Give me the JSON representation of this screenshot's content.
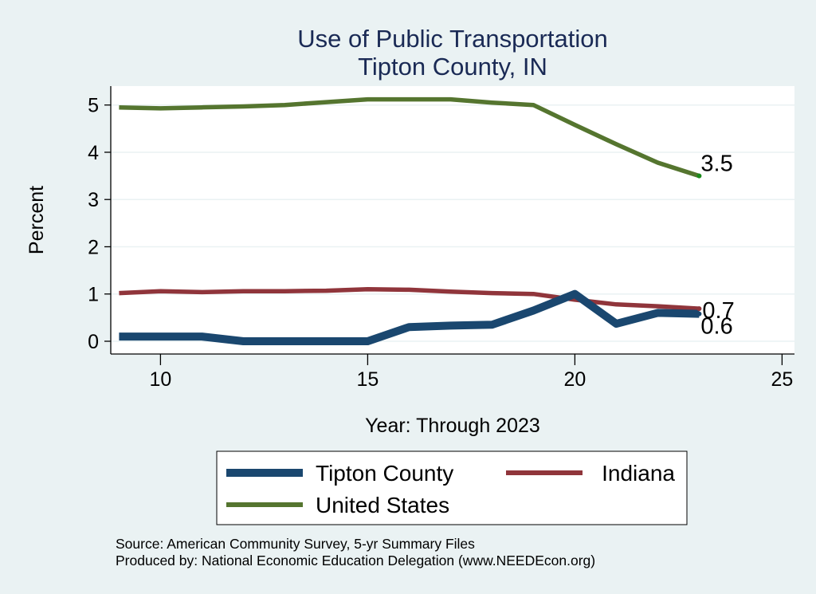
{
  "chart_data": {
    "type": "line",
    "title": "Use of Public Transportation",
    "subtitle": "Tipton County, IN",
    "xlabel": "Year: Through 2023",
    "ylabel": "Percent",
    "xlim": [
      8.8,
      25.3
    ],
    "ylim": [
      -0.27,
      5.4
    ],
    "xticks": [
      10,
      15,
      20,
      25
    ],
    "yticks": [
      0,
      1,
      2,
      3,
      4,
      5
    ],
    "grid": true,
    "x": [
      9,
      10,
      11,
      12,
      13,
      14,
      15,
      16,
      17,
      18,
      19,
      20,
      21,
      22,
      23
    ],
    "series": [
      {
        "name": "Tipton County",
        "color": "#1a476f",
        "values": [
          0.1,
          0.1,
          0.1,
          0.0,
          0.0,
          0.0,
          0.0,
          0.3,
          0.33,
          0.35,
          0.65,
          1.0,
          0.37,
          0.6,
          0.58
        ],
        "end_label": "0.6"
      },
      {
        "name": "Indiana",
        "color": "#90353b",
        "values": [
          1.02,
          1.06,
          1.04,
          1.06,
          1.06,
          1.07,
          1.1,
          1.09,
          1.05,
          1.02,
          1.0,
          0.88,
          0.78,
          0.74,
          0.69
        ],
        "end_label": "0.7"
      },
      {
        "name": "United States",
        "color": "#55752f",
        "values": [
          4.95,
          4.93,
          4.95,
          4.97,
          5.0,
          5.06,
          5.12,
          5.12,
          5.12,
          5.05,
          5.0,
          4.58,
          4.17,
          3.78,
          3.5
        ],
        "end_label": "3.5"
      }
    ],
    "legend": {
      "placement": "bottom",
      "entries": [
        "Tipton County",
        "Indiana",
        "United States"
      ]
    },
    "notes": [
      "Source: American Community Survey, 5-yr Summary Files",
      "Produced by: National Economic Education Delegation (www.NEEDEcon.org)"
    ]
  }
}
